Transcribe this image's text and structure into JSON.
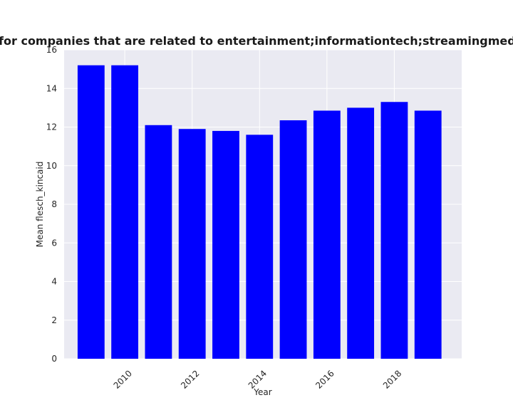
{
  "chart_data": {
    "type": "bar",
    "title": "Mean flesch_kincaid in privacy policies for companies that are related to entertainment;informationtech;streamingmedia Mean flesch_kincaid in privacy policies",
    "xlabel": "Year",
    "ylabel": "Mean flesch_kincaid",
    "x": [
      2009,
      2010,
      2011,
      2012,
      2013,
      2014,
      2015,
      2016,
      2017,
      2018,
      2019
    ],
    "values": [
      15.2,
      15.2,
      12.1,
      11.9,
      11.8,
      11.6,
      12.35,
      12.85,
      13.0,
      13.3,
      12.85
    ],
    "xticks": [
      2010,
      2012,
      2014,
      2016,
      2018
    ],
    "yticks": [
      0,
      2,
      4,
      6,
      8,
      10,
      12,
      14,
      16
    ],
    "xlim": [
      2008.2,
      2020.0
    ],
    "ylim": [
      0,
      16
    ],
    "grid": true,
    "bar_color": "#0000ff",
    "plot_background": "#eaeaf2",
    "grid_color": "#ffffff"
  }
}
